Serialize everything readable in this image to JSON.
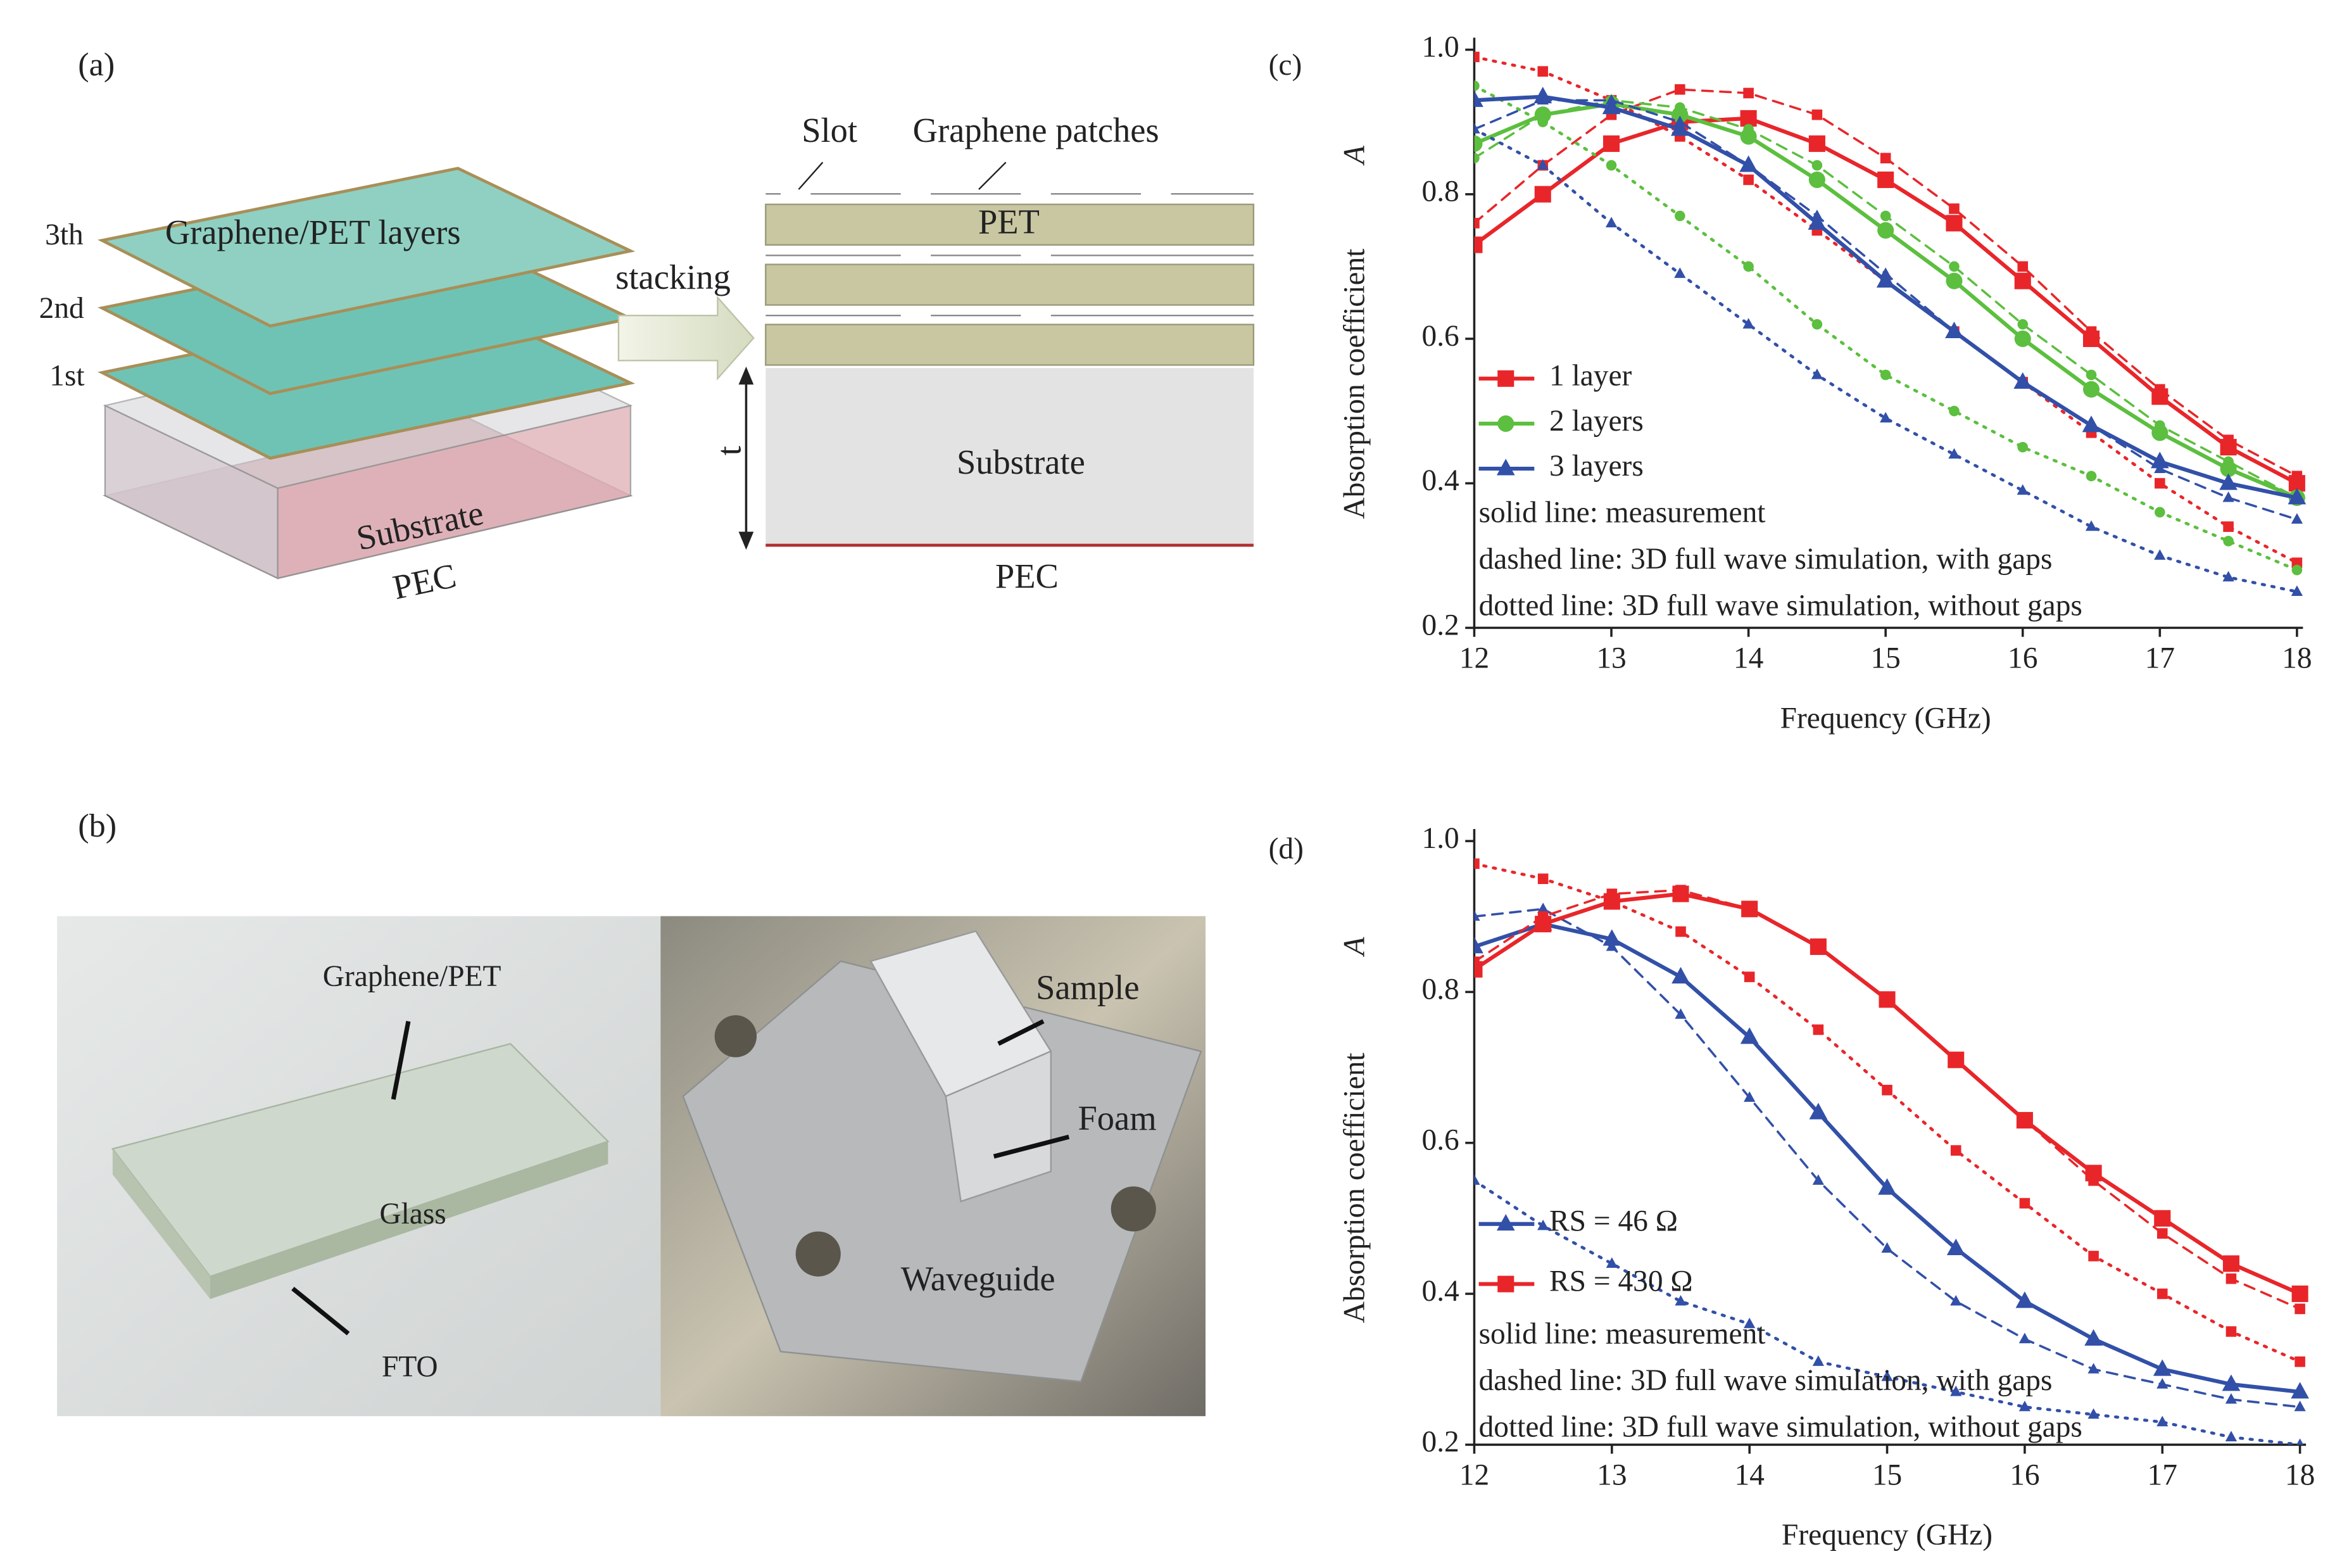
{
  "panel_a": {
    "label": "(a)",
    "layer_labels": [
      "3th",
      "2nd",
      "1st"
    ],
    "layers_title": "Graphene/PET layers",
    "substrate": "Substrate",
    "pec": "PEC",
    "arrow": "stacking",
    "slot": "Slot",
    "patches": "Graphene patches",
    "pet": "PET",
    "thickness": "t",
    "substrate_2": "Substrate",
    "pec_2": "PEC"
  },
  "panel_b": {
    "label": "(b)",
    "graphene_pet": "Graphene/PET",
    "glass": "Glass",
    "fto": "FTO",
    "sample": "Sample",
    "foam": "Foam",
    "waveguide": "Waveguide"
  },
  "chart_data": [
    {
      "type": "line",
      "panel_label": "(c)",
      "xlabel": "Frequency (GHz)",
      "ylabel": "Absorption coefficient",
      "ylabel_symbol": "A",
      "xlim": [
        12,
        18
      ],
      "ylim": [
        0.2,
        1
      ],
      "xticks": [
        12,
        13,
        14,
        15,
        16,
        17,
        18
      ],
      "yticks": [
        0.2,
        0.4,
        0.6,
        0.8,
        {
          "value": 1,
          "label": "1.0"
        }
      ],
      "x": [
        12,
        12.5,
        13,
        13.5,
        14,
        14.5,
        15,
        15.5,
        16,
        16.5,
        17,
        17.5,
        18
      ],
      "series": [
        {
          "name": "1 layer",
          "color": "#e8262a",
          "marker": "square",
          "values": [
            0.73,
            0.8,
            0.87,
            0.9,
            0.905,
            0.87,
            0.82,
            0.76,
            0.68,
            0.6,
            0.52,
            0.45,
            0.4
          ],
          "values_with_gaps": [
            0.76,
            0.84,
            0.91,
            0.945,
            0.94,
            0.91,
            0.85,
            0.78,
            0.7,
            0.61,
            0.53,
            0.46,
            0.41
          ],
          "values_without_gaps": [
            0.99,
            0.97,
            0.93,
            0.88,
            0.82,
            0.75,
            0.68,
            0.61,
            0.54,
            0.47,
            0.4,
            0.34,
            0.29
          ]
        },
        {
          "name": "2 layers",
          "color": "#5cbf3f",
          "marker": "circle",
          "values": [
            0.87,
            0.91,
            0.925,
            0.91,
            0.88,
            0.82,
            0.75,
            0.68,
            0.6,
            0.53,
            0.47,
            0.42,
            0.38
          ],
          "values_with_gaps": [
            0.85,
            0.91,
            0.93,
            0.92,
            0.89,
            0.84,
            0.77,
            0.7,
            0.62,
            0.55,
            0.48,
            0.43,
            0.38
          ],
          "values_without_gaps": [
            0.95,
            0.9,
            0.84,
            0.77,
            0.7,
            0.62,
            0.55,
            0.5,
            0.45,
            0.41,
            0.36,
            0.32,
            0.28
          ]
        },
        {
          "name": "3 layers",
          "color": "#3250a8",
          "marker": "triangle",
          "values": [
            0.93,
            0.935,
            0.92,
            0.89,
            0.84,
            0.76,
            0.68,
            0.61,
            0.54,
            0.48,
            0.43,
            0.4,
            0.38
          ],
          "values_with_gaps": [
            0.89,
            0.93,
            0.93,
            0.9,
            0.84,
            0.77,
            0.69,
            0.61,
            0.54,
            0.48,
            0.42,
            0.38,
            0.35
          ],
          "values_without_gaps": [
            0.89,
            0.84,
            0.76,
            0.69,
            0.62,
            0.55,
            0.49,
            0.44,
            0.39,
            0.34,
            0.3,
            0.27,
            0.25
          ]
        }
      ],
      "notes": [
        "solid line: measurement",
        "dashed line: 3D full wave simulation, with gaps",
        "dotted line: 3D full wave simulation, without gaps"
      ]
    },
    {
      "type": "line",
      "panel_label": "(d)",
      "xlabel": "Frequency (GHz)",
      "ylabel": "Absorption coefficient",
      "ylabel_symbol": "A",
      "xlim": [
        12,
        18
      ],
      "ylim": [
        0.2,
        1
      ],
      "xticks": [
        12,
        13,
        14,
        15,
        16,
        17,
        18
      ],
      "yticks": [
        0.2,
        0.4,
        0.6,
        0.8,
        {
          "value": 1,
          "label": "1.0"
        }
      ],
      "x": [
        12,
        12.5,
        13,
        13.5,
        14,
        14.5,
        15,
        15.5,
        16,
        16.5,
        17,
        17.5,
        18
      ],
      "series": [
        {
          "name": "RS = 46 Ω",
          "color": "#3250a8",
          "marker": "triangle",
          "values": [
            0.86,
            0.89,
            0.87,
            0.82,
            0.74,
            0.64,
            0.54,
            0.46,
            0.39,
            0.34,
            0.3,
            0.28,
            0.27
          ],
          "values_with_gaps": [
            0.9,
            0.91,
            0.86,
            0.77,
            0.66,
            0.55,
            0.46,
            0.39,
            0.34,
            0.3,
            0.28,
            0.26,
            0.25
          ],
          "values_without_gaps": [
            0.55,
            0.49,
            0.44,
            0.39,
            0.36,
            0.31,
            0.29,
            0.27,
            0.25,
            0.24,
            0.23,
            0.21,
            0.2
          ]
        },
        {
          "name": "RS = 430 Ω",
          "color": "#e8262a",
          "marker": "square",
          "values": [
            0.83,
            0.89,
            0.92,
            0.93,
            0.91,
            0.86,
            0.79,
            0.71,
            0.63,
            0.56,
            0.5,
            0.44,
            0.4
          ],
          "values_with_gaps": [
            0.84,
            0.9,
            0.93,
            0.935,
            0.91,
            0.86,
            0.79,
            0.71,
            0.63,
            0.55,
            0.48,
            0.42,
            0.38
          ],
          "values_without_gaps": [
            0.97,
            0.95,
            0.92,
            0.88,
            0.82,
            0.75,
            0.67,
            0.59,
            0.52,
            0.45,
            0.4,
            0.35,
            0.31
          ]
        }
      ],
      "notes": [
        "solid line: measurement",
        "dashed line: 3D full wave simulation, with gaps",
        "dotted line: 3D full wave simulation, without gaps"
      ]
    }
  ]
}
